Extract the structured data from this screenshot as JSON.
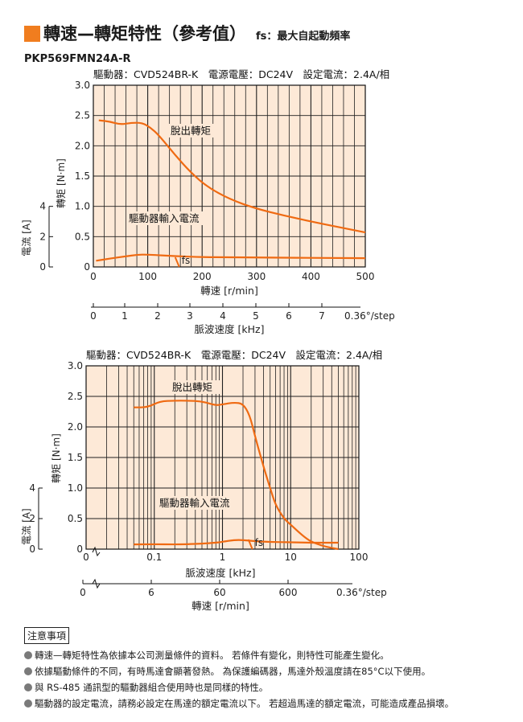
{
  "header": {
    "title": "轉速—轉矩特性（參考值）",
    "fs_note": "fs：最大自起動頻率",
    "model": "PKP569FMN24A-R"
  },
  "colors": {
    "accent": "#f07d1f",
    "plot_bg": "#fde9d7",
    "grid": "#1f1f1f",
    "curve": "#ef6a12"
  },
  "notes": {
    "title": "注意事項",
    "items": [
      "轉速—轉矩特性為依據本公司測量條件的資料。 若條件有變化，則特性可能產生變化。",
      "依據驅動條件的不同，有時馬達會顯著發熱。 為保護編碼器，馬達外殼溫度請在85°C以下使用。",
      "與 RS-485 通訊型的驅動器組合使用時也是同樣的特性。",
      "驅動器的設定電流，請務必設定在馬達的額定電流以下。 若超過馬達的額定電流，可能造成產品損壞。"
    ]
  },
  "chart_data": [
    {
      "type": "line",
      "conditions": "驅動器：CVD524BR-K　電源電壓：DC24V　設定電流：2.4A/相",
      "x_scale": "linear",
      "xlabel": "轉速 [r/min]",
      "xlim": [
        0,
        500
      ],
      "x_ticks": [
        0,
        100,
        200,
        300,
        400,
        500
      ],
      "ylabel": "轉矩 [N·m]",
      "ylim": [
        0,
        3.0
      ],
      "y_ticks": [
        "0",
        "0.5",
        "1.0",
        "1.5",
        "2.0",
        "2.5",
        "3.0"
      ],
      "y2label": "電流 [A]",
      "y2lim": [
        0,
        4
      ],
      "y2_ticks": [
        "0",
        "2",
        "4"
      ],
      "x2label": "脈波速度 [kHz]",
      "x2_ticks": [
        "0",
        "1",
        "2",
        "3",
        "4",
        "5",
        "6",
        "7"
      ],
      "x2_step_label": "0.36°/step",
      "grid": true,
      "series": [
        {
          "name": "脫出轉矩",
          "axis": "torque",
          "x": [
            10,
            30,
            50,
            70,
            90,
            105,
            120,
            150,
            180,
            210,
            250,
            300,
            350,
            400,
            450,
            500
          ],
          "y": [
            2.42,
            2.4,
            2.35,
            2.38,
            2.38,
            2.3,
            2.18,
            1.85,
            1.55,
            1.32,
            1.12,
            0.96,
            0.85,
            0.75,
            0.66,
            0.57
          ]
        },
        {
          "name": "驅動器輸入電流",
          "axis": "current",
          "x": [
            5,
            30,
            60,
            80,
            100,
            150,
            200,
            250,
            300,
            350,
            400,
            450,
            500
          ],
          "y": [
            0.41,
            0.55,
            0.7,
            0.8,
            0.82,
            0.71,
            0.65,
            0.64,
            0.62,
            0.61,
            0.6,
            0.59,
            0.58
          ]
        }
      ],
      "fs_label": "fs",
      "fs_x": 155
    },
    {
      "type": "line",
      "conditions": "驅動器：CVD524BR-K　電源電壓：DC24V　設定電流：2.4A/相",
      "x_scale": "log",
      "xlabel": "脈波速度 [kHz]",
      "xlim": [
        0.01,
        100
      ],
      "x_ticks": [
        "0",
        "0.1",
        "1",
        "10",
        "100"
      ],
      "ylabel": "轉矩 [N·m]",
      "ylim": [
        0,
        3.0
      ],
      "y_ticks": [
        "0",
        "0.5",
        "1.0",
        "1.5",
        "2.0",
        "2.5",
        "3.0"
      ],
      "y2label": "電流 [A]",
      "y2lim": [
        0,
        4
      ],
      "y2_ticks": [
        "0",
        "2",
        "4"
      ],
      "x2label": "轉速 [r/min]",
      "x2_ticks": [
        "0",
        "6",
        "60",
        "600"
      ],
      "x2_step_label": "0.36°/step",
      "grid": true,
      "series": [
        {
          "name": "脫出轉矩",
          "axis": "torque",
          "x": [
            0.05,
            0.08,
            0.12,
            0.2,
            0.3,
            0.5,
            0.8,
            1.0,
            1.5,
            2.0,
            2.5,
            3.0,
            4.0,
            5.0,
            6.0,
            8.0,
            10.0,
            15.0,
            20.0,
            30.0,
            40.0,
            50.0
          ],
          "y": [
            2.32,
            2.32,
            2.42,
            2.43,
            2.43,
            2.42,
            2.35,
            2.37,
            2.4,
            2.38,
            2.2,
            1.85,
            1.35,
            1.0,
            0.72,
            0.5,
            0.4,
            0.22,
            0.12,
            0.05,
            0.02,
            0.0
          ]
        },
        {
          "name": "驅動器輸入電流",
          "axis": "current",
          "x": [
            0.05,
            0.1,
            0.2,
            0.3,
            0.5,
            0.8,
            1.0,
            1.5,
            2.0,
            3.0,
            5.0,
            8.0,
            10.0,
            15.0,
            20.0,
            30.0,
            50.0
          ],
          "y": [
            0.31,
            0.32,
            0.31,
            0.32,
            0.36,
            0.42,
            0.48,
            0.6,
            0.6,
            0.52,
            0.47,
            0.46,
            0.45,
            0.43,
            0.42,
            0.42,
            0.42
          ]
        }
      ],
      "fs_label": "fs",
      "fs_x": 2.6
    }
  ]
}
